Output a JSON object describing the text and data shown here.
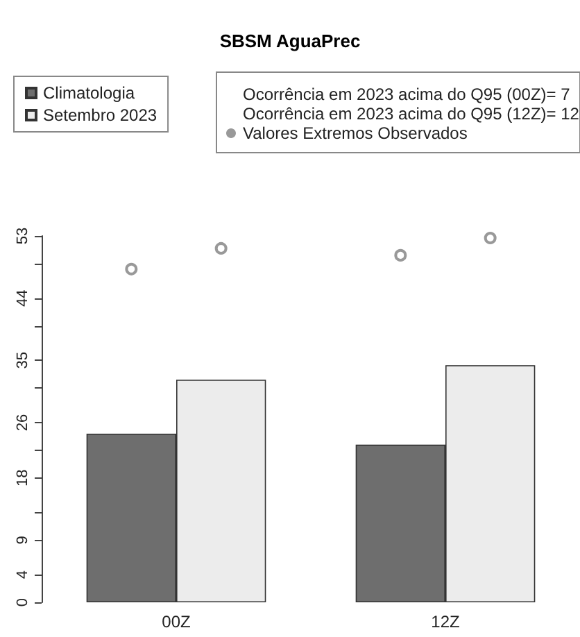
{
  "chart_data": {
    "type": "bar",
    "title": "SBSM AguaPrec",
    "categories": [
      "00Z",
      "12Z"
    ],
    "series": [
      {
        "name": "Climatologia",
        "color": "#6e6e6e",
        "values": [
          24.4,
          22.8
        ]
      },
      {
        "name": "Setembro 2023",
        "color": "#ececec",
        "values": [
          32.2,
          34.3
        ]
      },
      {
        "name": "Valores Extremos Observados",
        "type": "scatter",
        "color": "#808080",
        "x": [
          "00Z",
          "00Z",
          "12Z",
          "12Z"
        ],
        "values": [
          48.2,
          51.2,
          50.2,
          52.7
        ]
      }
    ],
    "ylim": [
      0,
      53
    ],
    "yticks": [
      0,
      4,
      9,
      {
        "value": 13,
        "label": null
      },
      18,
      {
        "value": 22,
        "label": null
      },
      26,
      {
        "value": 31,
        "label": null
      },
      35,
      {
        "value": 40,
        "label": null
      },
      44,
      {
        "value": 49,
        "label": null
      },
      53
    ],
    "annotations": [
      "Ocorrência em 2023 acima do Q95 (00Z)= 7",
      "Ocorrência em 2023 acima do Q95 (12Z)= 12"
    ],
    "marker": "circle",
    "grid": false,
    "legend": "top"
  }
}
